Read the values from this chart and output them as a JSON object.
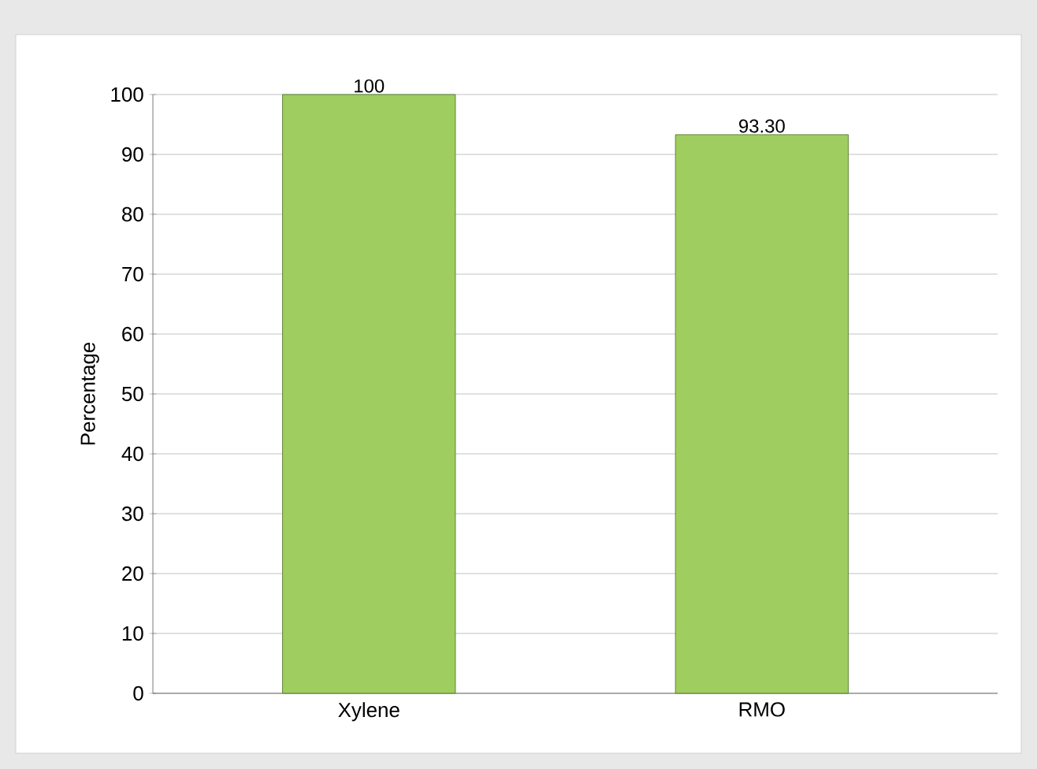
{
  "chart_data": {
    "type": "bar",
    "ylabel": "Percentage",
    "categories": [
      "Xylene",
      "RMO"
    ],
    "values": [
      100,
      93.3
    ],
    "value_labels": [
      "100",
      "93.30"
    ],
    "color": "#9fcd5f",
    "ylim": [
      0,
      100
    ],
    "yticks": [
      0,
      10,
      20,
      30,
      40,
      50,
      60,
      70,
      80,
      90,
      100
    ],
    "grid": "y"
  }
}
